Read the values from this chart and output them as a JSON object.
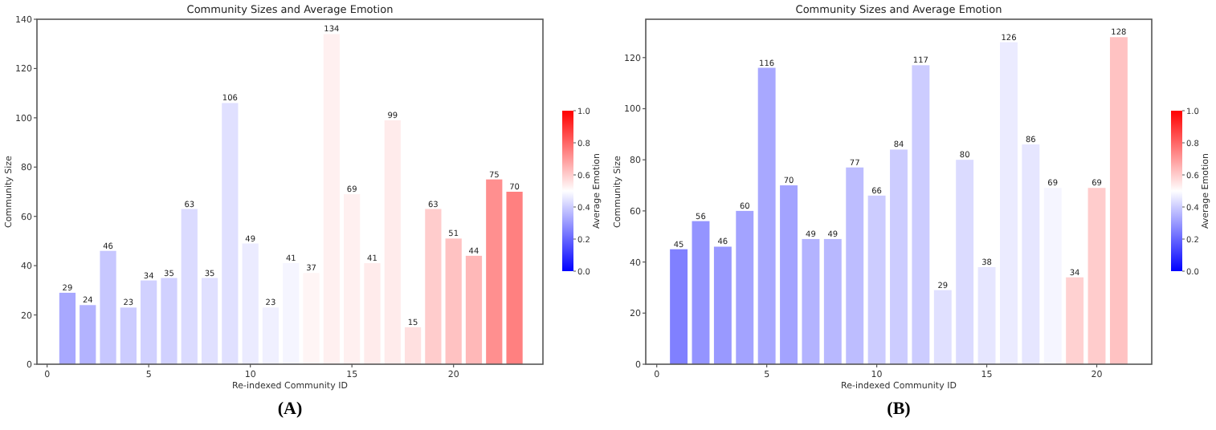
{
  "chart_data": [
    {
      "type": "bar",
      "title": "Community Sizes and Average Emotion",
      "xlabel": "Re-indexed Community ID",
      "ylabel": "Community Size",
      "clabel": "Average Emotion",
      "x": [
        1,
        2,
        3,
        4,
        5,
        6,
        7,
        8,
        9,
        10,
        11,
        12,
        13,
        14,
        15,
        16,
        17,
        18,
        19,
        20,
        21,
        22,
        23
      ],
      "values": [
        29,
        24,
        46,
        23,
        34,
        35,
        63,
        35,
        106,
        49,
        23,
        41,
        37,
        134,
        69,
        41,
        99,
        15,
        63,
        51,
        44,
        75,
        70
      ],
      "cvalues": [
        0.33,
        0.35,
        0.39,
        0.4,
        0.41,
        0.41,
        0.43,
        0.44,
        0.44,
        0.46,
        0.47,
        0.48,
        0.52,
        0.53,
        0.53,
        0.54,
        0.54,
        0.56,
        0.6,
        0.62,
        0.64,
        0.72,
        0.75
      ],
      "data_labels": true,
      "xlim": [
        -0.5,
        24.4
      ],
      "xticks": [
        0,
        5,
        10,
        15,
        20
      ],
      "ylim": [
        0,
        140
      ],
      "yticks": [
        0,
        20,
        40,
        60,
        80,
        100,
        120,
        140
      ],
      "clim": [
        0,
        1
      ],
      "cticks": [
        {
          "value": 0,
          "label": "0.0"
        },
        {
          "value": 0.2,
          "label": "0.2"
        },
        {
          "value": 0.4,
          "label": "0.4"
        },
        {
          "value": 0.6,
          "label": "0.6"
        },
        {
          "value": 0.8,
          "label": "0.8"
        },
        {
          "value": 1,
          "label": "1.0"
        }
      ],
      "annotations": [
        "(A)"
      ]
    },
    {
      "type": "bar",
      "title": "Community Sizes and Average Emotion",
      "xlabel": "Re-indexed Community ID",
      "ylabel": "Community Size",
      "clabel": "Average Emotion",
      "x": [
        1,
        2,
        3,
        4,
        5,
        6,
        7,
        8,
        9,
        10,
        11,
        12,
        13,
        14,
        15,
        16,
        17,
        18,
        19,
        20,
        21
      ],
      "values": [
        45,
        56,
        46,
        60,
        116,
        70,
        49,
        49,
        77,
        66,
        84,
        117,
        29,
        80,
        38,
        126,
        86,
        69,
        34,
        69,
        128
      ],
      "cvalues": [
        0.25,
        0.29,
        0.3,
        0.32,
        0.33,
        0.32,
        0.35,
        0.36,
        0.37,
        0.4,
        0.4,
        0.4,
        0.44,
        0.43,
        0.45,
        0.46,
        0.45,
        0.48,
        0.59,
        0.6,
        0.62
      ],
      "data_labels": true,
      "xlim": [
        -0.5,
        22.5
      ],
      "xticks": [
        0,
        5,
        10,
        15,
        20
      ],
      "ylim": [
        0,
        135
      ],
      "yticks": [
        0,
        20,
        40,
        60,
        80,
        100,
        120
      ],
      "clim": [
        0,
        1
      ],
      "cticks": [
        {
          "value": 0,
          "label": "0.0"
        },
        {
          "value": 0.2,
          "label": "0.2"
        },
        {
          "value": 0.4,
          "label": "0.4"
        },
        {
          "value": 0.6,
          "label": "0.6"
        },
        {
          "value": 0.8,
          "label": "0.8"
        },
        {
          "value": 1,
          "label": "1.0"
        }
      ],
      "annotations": [
        "(B)"
      ]
    }
  ]
}
